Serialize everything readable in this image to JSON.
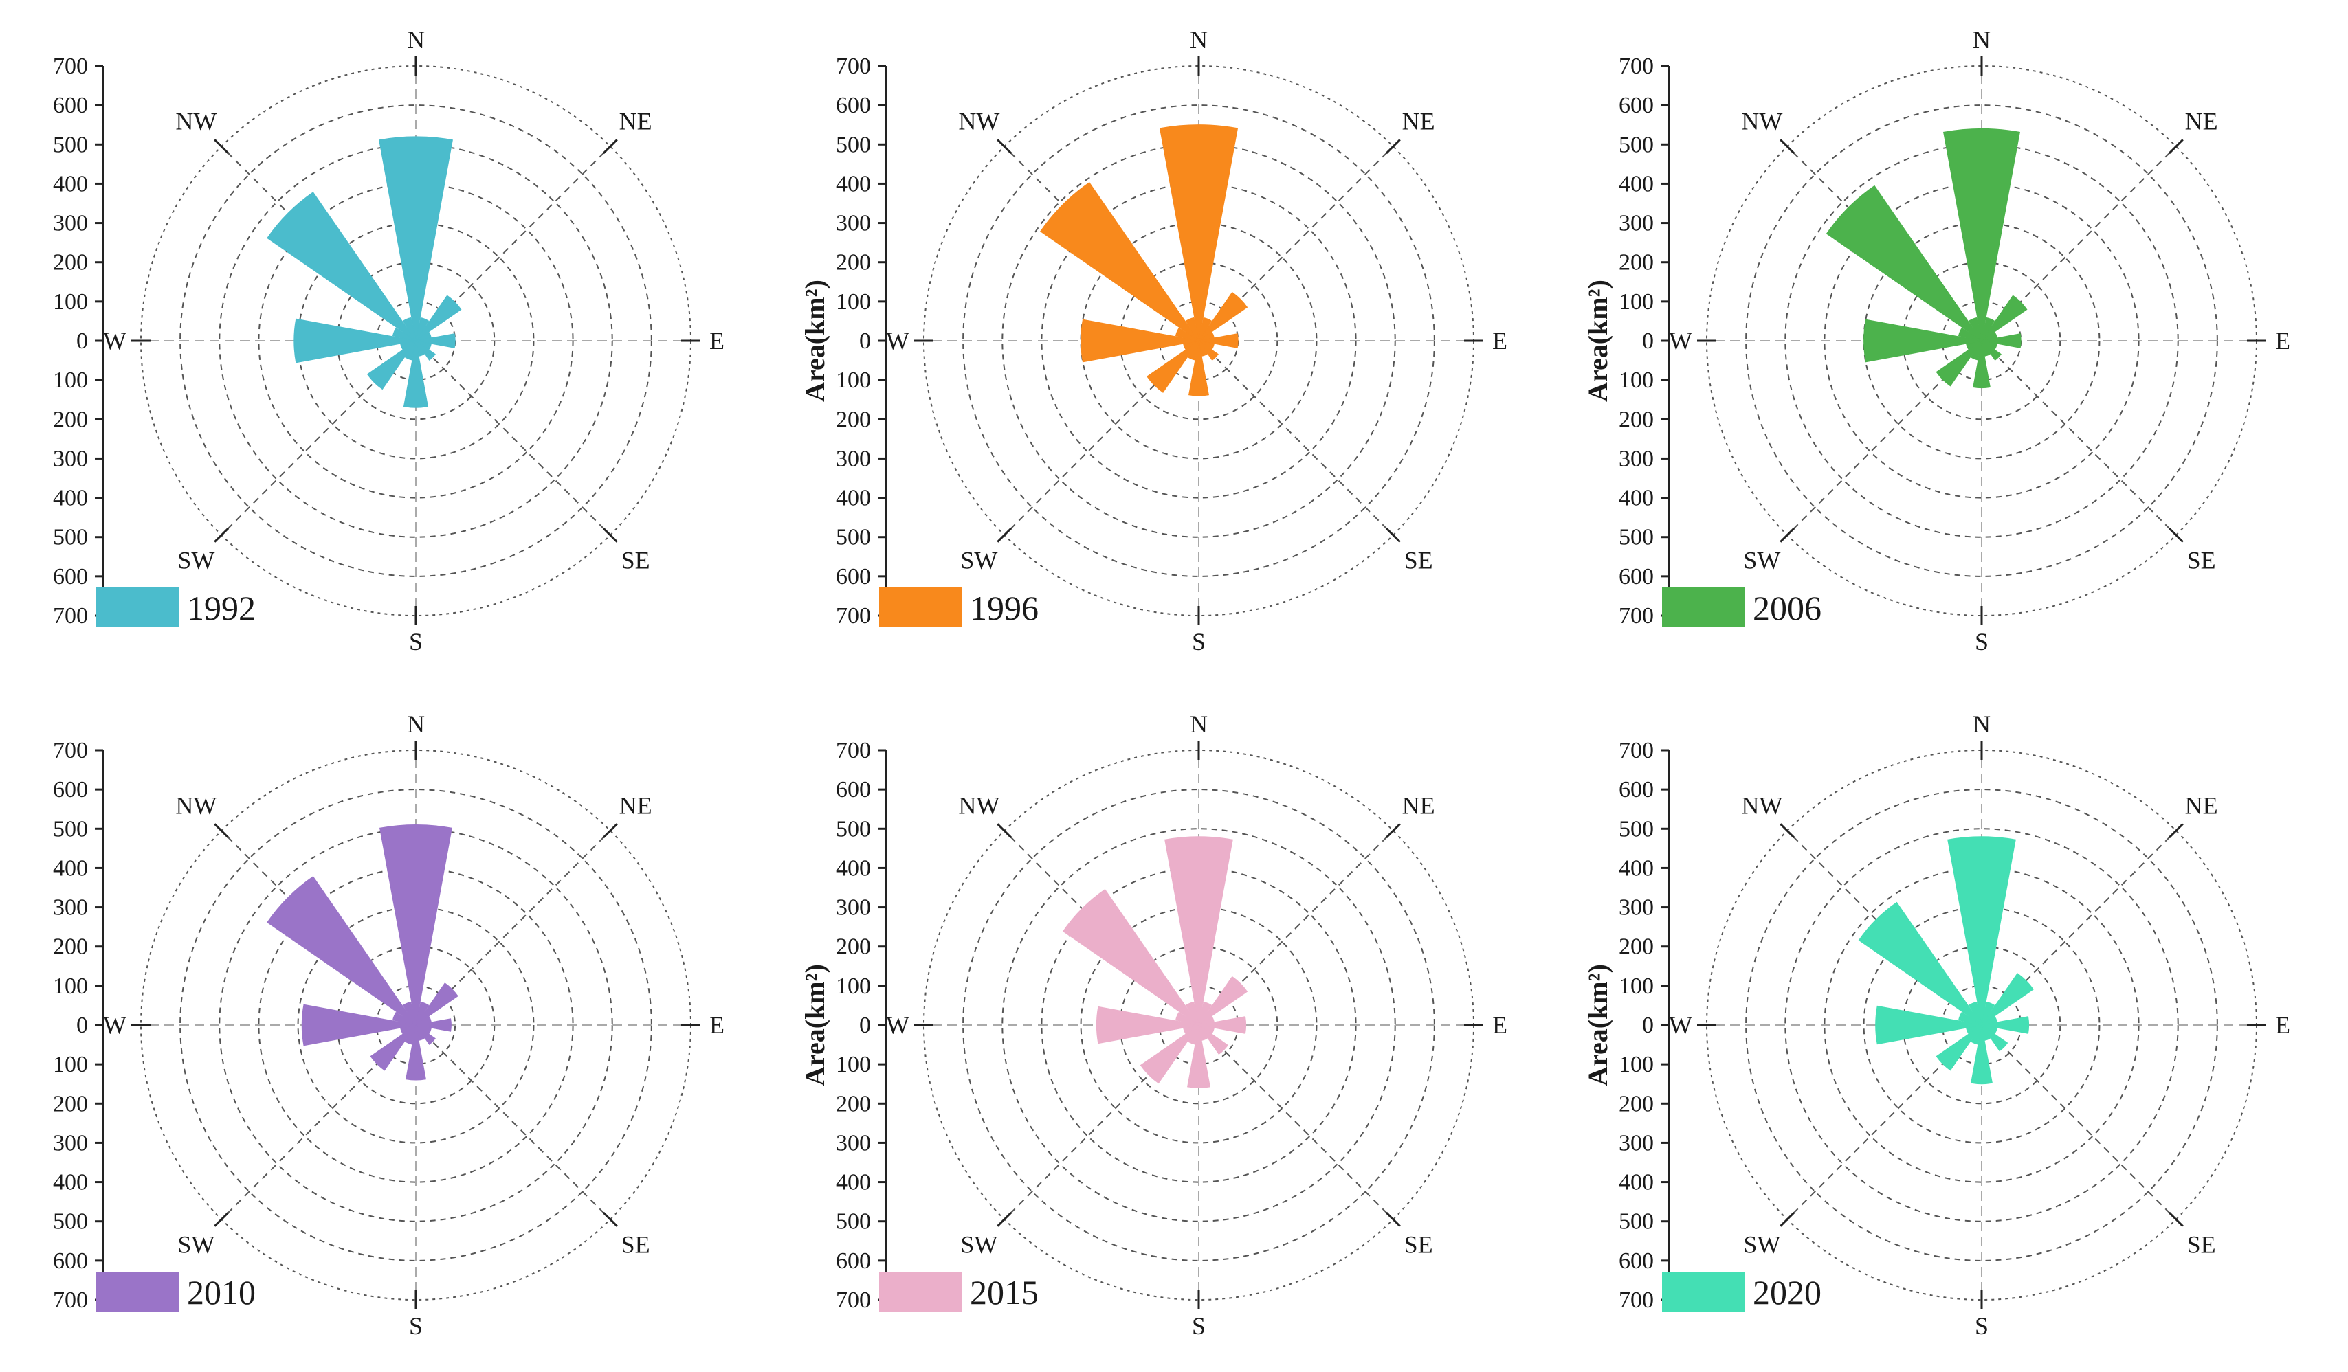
{
  "figure": {
    "description_hidden": ""
  },
  "chart_data": [
    {
      "type": "rose",
      "year": "1992",
      "color": "#4bbccc",
      "ylabel": "",
      "directions": [
        "N",
        "NNE",
        "NE",
        "ENE",
        "E",
        "ESE",
        "SE",
        "SSE",
        "S",
        "SSW",
        "SW",
        "WSW",
        "W",
        "WNW",
        "NW",
        "NNW"
      ],
      "values": [
        520,
        60,
        140,
        40,
        100,
        40,
        60,
        40,
        170,
        50,
        150,
        40,
        310,
        60,
        460,
        60
      ],
      "radial_ticks": [
        "700",
        "600",
        "500",
        "400",
        "300",
        "200",
        "100",
        "0",
        "100",
        "200",
        "300",
        "400",
        "500",
        "600",
        "700"
      ],
      "compass_labels": {
        "N": "N",
        "NE": "NE",
        "E": "E",
        "SE": "SE",
        "S": "S",
        "SW": "SW",
        "W": "W",
        "NW": "NW"
      },
      "rmax": 700
    },
    {
      "type": "rose",
      "year": "1996",
      "color": "#f8891c",
      "ylabel": "Area(km²)",
      "directions": [
        "N",
        "NNE",
        "NE",
        "ENE",
        "E",
        "ESE",
        "SE",
        "SSE",
        "S",
        "SSW",
        "SW",
        "WSW",
        "W",
        "WNW",
        "NW",
        "NNW"
      ],
      "values": [
        550,
        60,
        150,
        40,
        100,
        40,
        60,
        40,
        140,
        50,
        160,
        40,
        300,
        60,
        490,
        60
      ],
      "radial_ticks": [
        "700",
        "600",
        "500",
        "400",
        "300",
        "200",
        "100",
        "0",
        "100",
        "200",
        "300",
        "400",
        "500",
        "600",
        "700"
      ],
      "compass_labels": {
        "N": "N",
        "NE": "NE",
        "E": "E",
        "SE": "SE",
        "S": "S",
        "SW": "SW",
        "W": "W",
        "NW": "NW"
      },
      "rmax": 700
    },
    {
      "type": "rose",
      "year": "2006",
      "color": "#4cb24c",
      "ylabel": "Area(km²)",
      "directions": [
        "N",
        "NNE",
        "NE",
        "ENE",
        "E",
        "ESE",
        "SE",
        "SSE",
        "S",
        "SSW",
        "SW",
        "WSW",
        "W",
        "WNW",
        "NW",
        "NNW"
      ],
      "values": [
        540,
        60,
        140,
        40,
        100,
        40,
        60,
        40,
        120,
        50,
        140,
        40,
        300,
        60,
        480,
        60
      ],
      "radial_ticks": [
        "700",
        "600",
        "500",
        "400",
        "300",
        "200",
        "100",
        "0",
        "100",
        "200",
        "300",
        "400",
        "500",
        "600",
        "700"
      ],
      "compass_labels": {
        "N": "N",
        "NE": "NE",
        "E": "E",
        "SE": "SE",
        "S": "S",
        "SW": "SW",
        "W": "W",
        "NW": "NW"
      },
      "rmax": 700
    },
    {
      "type": "rose",
      "year": "2010",
      "color": "#9a74c8",
      "ylabel": "",
      "directions": [
        "N",
        "NNE",
        "NE",
        "ENE",
        "E",
        "ESE",
        "SE",
        "SSE",
        "S",
        "SSW",
        "SW",
        "WSW",
        "W",
        "WNW",
        "NW",
        "NNW"
      ],
      "values": [
        510,
        60,
        130,
        40,
        90,
        40,
        60,
        40,
        140,
        50,
        140,
        40,
        290,
        60,
        460,
        60
      ],
      "radial_ticks": [
        "700",
        "600",
        "500",
        "400",
        "300",
        "200",
        "100",
        "0",
        "100",
        "200",
        "300",
        "400",
        "500",
        "600",
        "700"
      ],
      "compass_labels": {
        "N": "N",
        "NE": "NE",
        "E": "E",
        "SE": "SE",
        "S": "S",
        "SW": "SW",
        "W": "W",
        "NW": "NW"
      },
      "rmax": 700
    },
    {
      "type": "rose",
      "year": "2015",
      "color": "#ebafca",
      "ylabel": "Area(km²)",
      "directions": [
        "N",
        "NNE",
        "NE",
        "ENE",
        "E",
        "ESE",
        "SE",
        "SSE",
        "S",
        "SSW",
        "SW",
        "WSW",
        "W",
        "WNW",
        "NW",
        "NNW"
      ],
      "values": [
        480,
        60,
        150,
        40,
        120,
        40,
        90,
        40,
        160,
        50,
        180,
        40,
        260,
        60,
        420,
        60
      ],
      "radial_ticks": [
        "700",
        "600",
        "500",
        "400",
        "300",
        "200",
        "100",
        "0",
        "100",
        "200",
        "300",
        "400",
        "500",
        "600",
        "700"
      ],
      "compass_labels": {
        "N": "N",
        "NE": "NE",
        "E": "E",
        "SE": "SE",
        "S": "S",
        "SW": "SW",
        "W": "W",
        "NW": "NW"
      },
      "rmax": 700
    },
    {
      "type": "rose",
      "year": "2020",
      "color": "#44dfb4",
      "ylabel": "Area(km²)",
      "directions": [
        "N",
        "NNE",
        "NE",
        "ENE",
        "E",
        "ESE",
        "SE",
        "SSE",
        "S",
        "SSW",
        "SW",
        "WSW",
        "W",
        "WNW",
        "NW",
        "NNW"
      ],
      "values": [
        480,
        60,
        160,
        40,
        120,
        40,
        80,
        40,
        150,
        50,
        140,
        40,
        270,
        60,
        380,
        60
      ],
      "radial_ticks": [
        "700",
        "600",
        "500",
        "400",
        "300",
        "200",
        "100",
        "0",
        "100",
        "200",
        "300",
        "400",
        "500",
        "600",
        "700"
      ],
      "compass_labels": {
        "N": "N",
        "NE": "NE",
        "E": "E",
        "SE": "SE",
        "S": "S",
        "SW": "SW",
        "W": "W",
        "NW": "NW"
      },
      "rmax": 700
    }
  ]
}
